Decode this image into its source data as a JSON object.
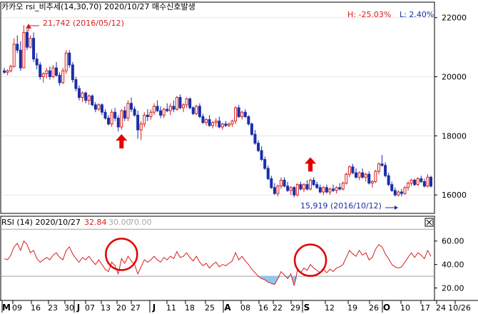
{
  "chart_data": [
    {
      "type": "candlestick",
      "title": "카카오 rsi_비추세(14,30,70)  2020/10/27 매수신호발생",
      "stats": {
        "high_label": "H: -25.03%",
        "low_label": "L: 2.40%"
      },
      "yticks": [
        "22000",
        "20000",
        "18000",
        "16000"
      ],
      "ylim": [
        15400,
        22500
      ],
      "annotations": [
        {
          "text": "21,742 (2016/05/12)",
          "value": 21742
        },
        {
          "text": "15,919 (2016/10/12)",
          "value": 15919
        }
      ],
      "buy_arrows": [
        {
          "candle_index": 36,
          "label": "buy-signal"
        },
        {
          "candle_index": 94,
          "label": "buy-signal"
        }
      ],
      "candles": [
        [
          20200,
          20300,
          20100,
          20150
        ],
        [
          20150,
          20250,
          20050,
          20200
        ],
        [
          20200,
          20400,
          20150,
          20350
        ],
        [
          20350,
          21300,
          20300,
          21100
        ],
        [
          21100,
          21400,
          20800,
          20900
        ],
        [
          20900,
          21200,
          20200,
          20300
        ],
        [
          20300,
          21742,
          20300,
          21500
        ],
        [
          21500,
          21600,
          20900,
          21000
        ],
        [
          21000,
          21400,
          20950,
          21300
        ],
        [
          21300,
          21500,
          20500,
          20600
        ],
        [
          20600,
          20800,
          20250,
          20400
        ],
        [
          20400,
          20500,
          19900,
          20000
        ],
        [
          20000,
          20150,
          19800,
          20100
        ],
        [
          20100,
          20300,
          19950,
          20200
        ],
        [
          20200,
          20350,
          19900,
          20000
        ],
        [
          20000,
          20400,
          19950,
          20300
        ],
        [
          20300,
          20500,
          20000,
          20050
        ],
        [
          20050,
          20150,
          19700,
          19800
        ],
        [
          19800,
          20300,
          19750,
          20200
        ],
        [
          20200,
          20900,
          20100,
          20800
        ],
        [
          20800,
          20900,
          20300,
          20400
        ],
        [
          20400,
          20500,
          19800,
          19900
        ],
        [
          19900,
          20000,
          19500,
          19600
        ],
        [
          19600,
          19700,
          19200,
          19300
        ],
        [
          19300,
          19500,
          19150,
          19450
        ],
        [
          19450,
          19500,
          19100,
          19200
        ],
        [
          19200,
          19400,
          19050,
          19350
        ],
        [
          19350,
          19400,
          19000,
          19050
        ],
        [
          19050,
          19150,
          18800,
          18900
        ],
        [
          18900,
          19100,
          18850,
          19050
        ],
        [
          19050,
          19100,
          18700,
          18800
        ],
        [
          18800,
          18900,
          18550,
          18600
        ],
        [
          18600,
          18700,
          18350,
          18400
        ],
        [
          18400,
          18900,
          18300,
          18800
        ],
        [
          18800,
          18950,
          18500,
          18600
        ],
        [
          18600,
          18700,
          18150,
          18300
        ],
        [
          18300,
          18900,
          18200,
          18850
        ],
        [
          18850,
          19000,
          18500,
          18600
        ],
        [
          18600,
          19200,
          18500,
          19100
        ],
        [
          19100,
          19300,
          18800,
          18900
        ],
        [
          18900,
          19000,
          18650,
          18700
        ],
        [
          18700,
          18850,
          17900,
          18200
        ],
        [
          18200,
          18500,
          17850,
          18400
        ],
        [
          18400,
          18800,
          18300,
          18700
        ],
        [
          18700,
          18900,
          18500,
          18650
        ],
        [
          18650,
          18900,
          18550,
          18800
        ],
        [
          18800,
          19100,
          18700,
          19000
        ],
        [
          19000,
          19200,
          18800,
          18850
        ],
        [
          18850,
          19000,
          18600,
          18700
        ],
        [
          18700,
          18950,
          18600,
          18900
        ],
        [
          18900,
          19100,
          18800,
          18850
        ],
        [
          18850,
          19100,
          18700,
          19000
        ],
        [
          19000,
          19200,
          18800,
          18900
        ],
        [
          18900,
          19350,
          18850,
          19300
        ],
        [
          19300,
          19400,
          18900,
          18950
        ],
        [
          18950,
          19100,
          18800,
          19050
        ],
        [
          19050,
          19300,
          18950,
          19250
        ],
        [
          19250,
          19300,
          18900,
          18950
        ],
        [
          18950,
          19000,
          18700,
          18750
        ],
        [
          18750,
          19050,
          18700,
          19000
        ],
        [
          19000,
          19100,
          18600,
          18650
        ],
        [
          18650,
          18750,
          18400,
          18450
        ],
        [
          18450,
          18600,
          18350,
          18550
        ],
        [
          18550,
          18700,
          18300,
          18350
        ],
        [
          18350,
          18500,
          18250,
          18450
        ],
        [
          18450,
          18600,
          18300,
          18500
        ],
        [
          18500,
          18650,
          18250,
          18300
        ],
        [
          18300,
          18450,
          18200,
          18400
        ],
        [
          18400,
          18500,
          18300,
          18350
        ],
        [
          18350,
          18450,
          18300,
          18400
        ],
        [
          18400,
          18550,
          18300,
          18500
        ],
        [
          18500,
          19000,
          18400,
          18950
        ],
        [
          18950,
          19050,
          18600,
          18650
        ],
        [
          18650,
          18850,
          18550,
          18800
        ],
        [
          18800,
          18900,
          18600,
          18650
        ],
        [
          18650,
          18700,
          18350,
          18400
        ],
        [
          18400,
          18450,
          18000,
          18050
        ],
        [
          18050,
          18200,
          17700,
          17750
        ],
        [
          17750,
          17850,
          17450,
          17500
        ],
        [
          17500,
          17650,
          17150,
          17200
        ],
        [
          17200,
          17300,
          16850,
          16900
        ],
        [
          16900,
          17000,
          16500,
          16550
        ],
        [
          16550,
          16650,
          16200,
          16250
        ],
        [
          16250,
          16400,
          16000,
          16050
        ],
        [
          16050,
          16350,
          15950,
          16300
        ],
        [
          16300,
          16600,
          16200,
          16500
        ],
        [
          16500,
          16600,
          16250,
          16300
        ],
        [
          16300,
          16450,
          16100,
          16150
        ],
        [
          16150,
          16300,
          16000,
          16250
        ],
        [
          16250,
          16300,
          15919,
          16000
        ],
        [
          16000,
          16400,
          15950,
          16350
        ],
        [
          16350,
          16450,
          16150,
          16200
        ],
        [
          16200,
          16400,
          16100,
          16350
        ],
        [
          16350,
          16500,
          16150,
          16200
        ],
        [
          16200,
          16550,
          16150,
          16500
        ],
        [
          16500,
          16600,
          16300,
          16350
        ],
        [
          16350,
          16450,
          16200,
          16250
        ],
        [
          16250,
          16350,
          16050,
          16100
        ],
        [
          16100,
          16300,
          16000,
          16250
        ],
        [
          16250,
          16350,
          16050,
          16100
        ],
        [
          16100,
          16250,
          16000,
          16200
        ],
        [
          16200,
          16350,
          16100,
          16150
        ],
        [
          16150,
          16300,
          16050,
          16250
        ],
        [
          16250,
          16400,
          16150,
          16200
        ],
        [
          16200,
          16450,
          16150,
          16400
        ],
        [
          16400,
          16750,
          16350,
          16700
        ],
        [
          16700,
          17000,
          16600,
          16950
        ],
        [
          16950,
          17050,
          16700,
          16750
        ],
        [
          16750,
          16900,
          16550,
          16600
        ],
        [
          16600,
          16800,
          16500,
          16750
        ],
        [
          16750,
          16900,
          16550,
          16600
        ],
        [
          16600,
          16750,
          16450,
          16700
        ],
        [
          16700,
          16800,
          16350,
          16400
        ],
        [
          16400,
          16500,
          16250,
          16450
        ],
        [
          16450,
          16850,
          16400,
          16800
        ],
        [
          16800,
          17100,
          16700,
          17050
        ],
        [
          17050,
          17350,
          16950,
          17000
        ],
        [
          17000,
          17100,
          16600,
          16650
        ],
        [
          16650,
          16750,
          16300,
          16350
        ],
        [
          16350,
          16450,
          16100,
          16150
        ],
        [
          16150,
          16250,
          15950,
          16000
        ],
        [
          16000,
          16150,
          15950,
          16100
        ],
        [
          16100,
          16200,
          15950,
          16050
        ],
        [
          16050,
          16300,
          16000,
          16250
        ],
        [
          16250,
          16450,
          16150,
          16400
        ],
        [
          16400,
          16550,
          16300,
          16500
        ],
        [
          16500,
          16550,
          16300,
          16350
        ],
        [
          16350,
          16600,
          16300,
          16550
        ],
        [
          16550,
          16650,
          16400,
          16450
        ],
        [
          16450,
          16550,
          16250,
          16300
        ],
        [
          16300,
          16700,
          16250,
          16600
        ],
        [
          16600,
          16650,
          16250,
          16300
        ]
      ]
    },
    {
      "type": "line",
      "title": "RSI  (14) 2020/10/27",
      "series": [
        {
          "name": "32.84",
          "color": "#d81e1e",
          "values": [
            45,
            44,
            48,
            55,
            58,
            52,
            60,
            57,
            50,
            52,
            45,
            42,
            44,
            46,
            44,
            48,
            50,
            46,
            44,
            52,
            55,
            49,
            45,
            42,
            46,
            44,
            47,
            43,
            40,
            44,
            40,
            36,
            34,
            42,
            39,
            32,
            45,
            41,
            47,
            43,
            40,
            32,
            38,
            44,
            42,
            44,
            47,
            44,
            42,
            46,
            44,
            47,
            45,
            51,
            46,
            47,
            50,
            46,
            43,
            47,
            42,
            39,
            41,
            37,
            40,
            42,
            38,
            40,
            39,
            41,
            43,
            50,
            44,
            47,
            43,
            40,
            36,
            33,
            30,
            28,
            27,
            25,
            24,
            23,
            28,
            34,
            31,
            28,
            32,
            22,
            35,
            33,
            37,
            35,
            40,
            37,
            35,
            33,
            36,
            33,
            36,
            34,
            37,
            38,
            40,
            46,
            52,
            49,
            47,
            52,
            48,
            50,
            44,
            46,
            53,
            57,
            55,
            49,
            45,
            40,
            38,
            37,
            38,
            42,
            46,
            50,
            46,
            50,
            48,
            45,
            52,
            47
          ]
        }
      ],
      "legend_extra": [
        "30.00",
        "70.00"
      ],
      "thresholds": [
        30,
        70
      ],
      "yticks": [
        "60.00",
        "40.00",
        "20.00"
      ],
      "ylim": [
        10,
        72
      ]
    }
  ],
  "x_axis_labels": [
    "M",
    "09",
    "16",
    "23",
    "30",
    "J",
    "07",
    "13",
    "20",
    "27",
    "J",
    "11",
    "18",
    "25",
    "A",
    "08",
    "16",
    "22",
    "29",
    "S",
    "12",
    "19",
    "26",
    "O",
    "10",
    "17",
    "24",
    "10/26"
  ]
}
